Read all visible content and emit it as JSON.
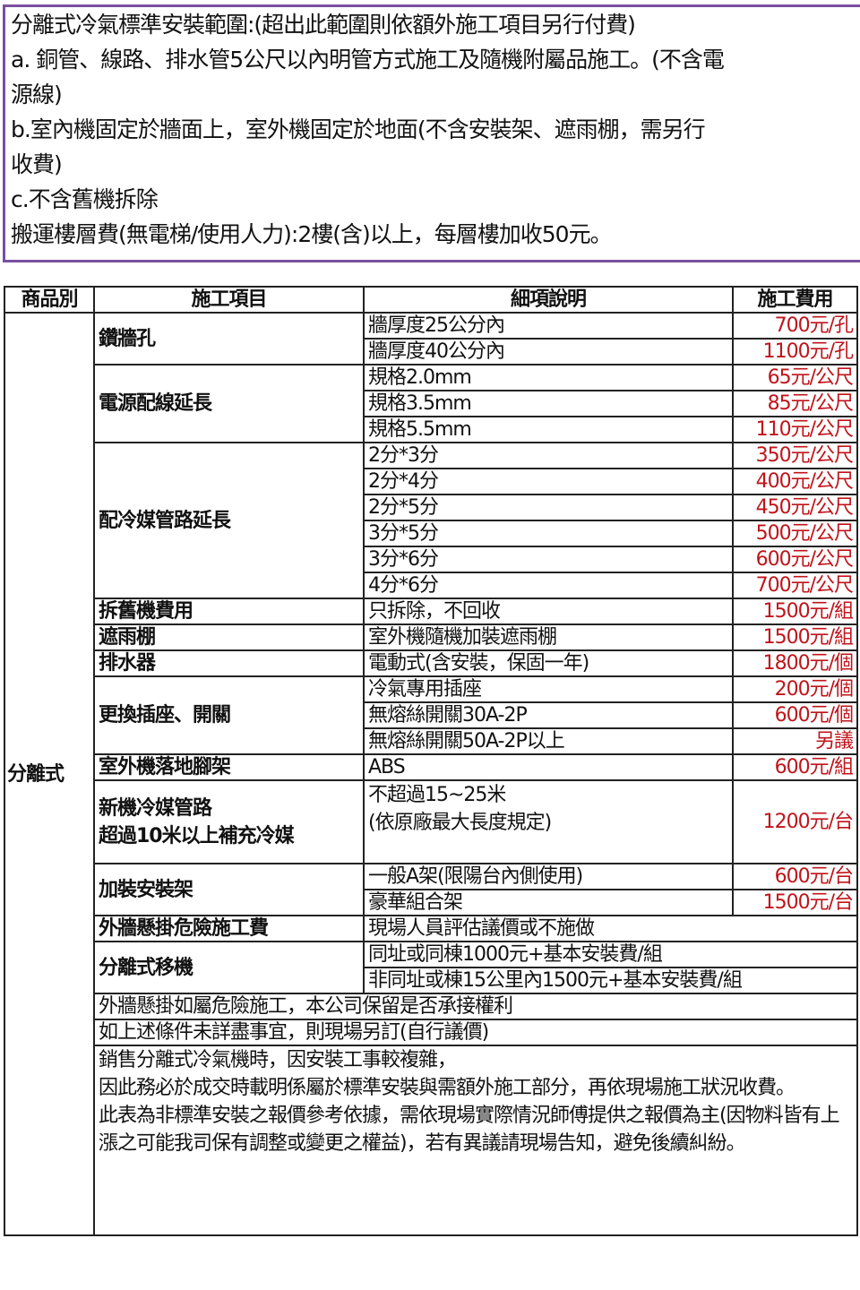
{
  "notes": [
    "分離式冷氣標準安裝範圍:(超出此範圍則依額外施工項目另行付費)",
    "a. 銅管、線路、排水管5公尺以內明管方式施工及隨機附屬品施工。(不含電",
    "源線)",
    "b.室內機固定於牆面上，室外機固定於地面(不含安裝架、遮雨棚，需另行",
    "收費)",
    "c.不含舊機拆除",
    "搬運樓層費(無電梯/使用人力):2樓(含)以上，每層樓加收50元。"
  ],
  "headers": [
    "商品別",
    "施工項目",
    "細項說明",
    "施工費用"
  ],
  "category": "分離式",
  "items": {
    "drill": {
      "name": "鑽牆孔",
      "rows": [
        [
          "牆厚度25公分內",
          "700元/孔"
        ],
        [
          "牆厚度40公分內",
          "1100元/孔"
        ]
      ]
    },
    "power": {
      "name": "電源配線延長",
      "rows": [
        [
          "規格2.0mm",
          "65元/公尺"
        ],
        [
          "規格3.5mm",
          "85元/公尺"
        ],
        [
          "規格5.5mm",
          "110元/公尺"
        ]
      ]
    },
    "pipe": {
      "name": "配冷媒管路延長",
      "rows": [
        [
          "2分*3分",
          "350元/公尺"
        ],
        [
          "2分*4分",
          "400元/公尺"
        ],
        [
          "2分*5分",
          "450元/公尺"
        ],
        [
          "3分*5分",
          "500元/公尺"
        ],
        [
          "3分*6分",
          "600元/公尺"
        ],
        [
          "4分*6分",
          "700元/公尺"
        ]
      ]
    },
    "remove": {
      "name": "拆舊機費用",
      "rows": [
        [
          "只拆除，不回收",
          "1500元/組"
        ]
      ]
    },
    "shade": {
      "name": "遮雨棚",
      "rows": [
        [
          "室外機隨機加裝遮雨棚",
          "1500元/組"
        ]
      ]
    },
    "drain": {
      "name": "排水器",
      "rows": [
        [
          "電動式(含安裝，保固一年)",
          "1800元/個"
        ]
      ]
    },
    "socket": {
      "name": "更換插座、開關",
      "rows": [
        [
          "冷氣專用插座",
          "200元/個"
        ],
        [
          "無熔絲開關30A-2P",
          "600元/個"
        ],
        [
          "無熔絲開關50A-2P以上",
          "另議"
        ]
      ]
    },
    "stand": {
      "name": "室外機落地腳架",
      "rows": [
        [
          "ABS",
          "600元/組"
        ]
      ]
    },
    "refill": {
      "name_line1": "新機冷媒管路",
      "name_line2": "超過10米以上補充冷媒",
      "desc_line1": "不超過15~25米",
      "desc_line2": "(依原廠最大長度規定)",
      "price": "1200元/台"
    },
    "bracket": {
      "name": "加裝安裝架",
      "rows": [
        [
          "一般A架(限陽台內側使用)",
          "600元/台"
        ],
        [
          "豪華組合架",
          "1500元/台"
        ]
      ]
    },
    "danger": {
      "name": "外牆懸掛危險施工費",
      "desc": "現場人員評估議價或不施做"
    },
    "move": {
      "name": "分離式移機",
      "rows": [
        "同址或同棟1000元+基本安裝費/組",
        "非同址或棟15公里內1500元+基本安裝費/組"
      ]
    }
  },
  "footer": [
    "外牆懸掛如屬危險施工，本公司保留是否承接權利",
    "如上述條件未詳盡事宜，則現場另訂(自行議價)",
    "銷售分離式冷氣機時，因安裝工事較複雜，",
    "因此務必於成交時載明係屬於標準安裝與需額外施工部分，再依現場施工狀況收費。",
    "此表為非標準安裝之報價參考依據，需依現場實際情況師傅提供之報價為主(因物料皆有上漲之可能我司保有調整或變更之權益)，若有異議請現場告知，避免後續糾紛。"
  ],
  "colors": {
    "price": "#c0141b",
    "note_border": "#7a4fa0"
  }
}
